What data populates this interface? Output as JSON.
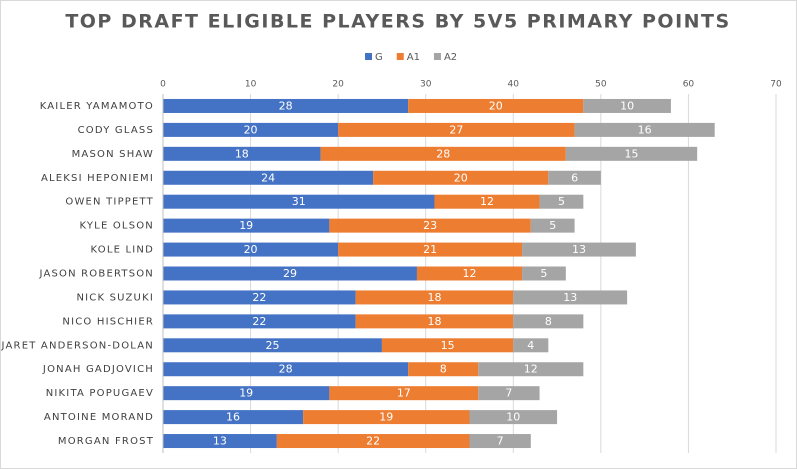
{
  "chart_data": {
    "type": "stacked-bar-horizontal",
    "title": "TOP DRAFT ELIGIBLE PLAYERS BY 5V5 PRIMARY POINTS",
    "categories": [
      "KAILER YAMAMOTO",
      "CODY GLASS",
      "MASON SHAW",
      "ALEKSI HEPONIEMI",
      "OWEN TIPPETT",
      "KYLE OLSON",
      "KOLE LIND",
      "JASON ROBERTSON",
      "NICK SUZUKI",
      "NICO HISCHIER",
      "JARET ANDERSON-DOLAN",
      "JONAH GADJOVICH",
      "NIKITA POPUGAEV",
      "ANTOINE MORAND",
      "MORGAN FROST"
    ],
    "series": [
      {
        "name": "G",
        "color": "#4472c4",
        "values": [
          28,
          20,
          18,
          24,
          31,
          19,
          20,
          29,
          22,
          22,
          25,
          28,
          19,
          16,
          13
        ]
      },
      {
        "name": "A1",
        "color": "#ed7d31",
        "values": [
          20,
          27,
          28,
          20,
          12,
          23,
          21,
          12,
          18,
          18,
          15,
          8,
          17,
          19,
          22
        ]
      },
      {
        "name": "A2",
        "color": "#a5a5a5",
        "values": [
          10,
          16,
          15,
          6,
          5,
          5,
          13,
          5,
          13,
          8,
          4,
          12,
          7,
          10,
          7
        ]
      }
    ],
    "xlim": [
      0,
      70
    ],
    "xticks": [
      0,
      10,
      20,
      30,
      40,
      50,
      60,
      70
    ],
    "grid": true,
    "legend": "top"
  }
}
